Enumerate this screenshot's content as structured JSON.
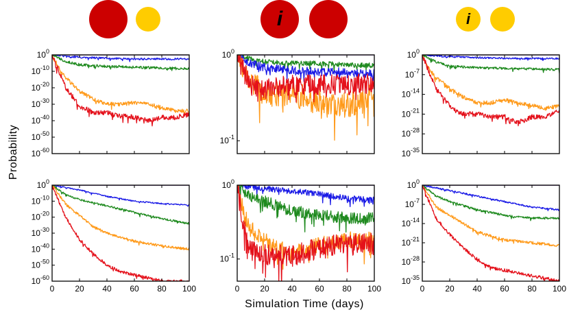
{
  "figure": {
    "ylabel": "Probability",
    "xlabel": "Simulation Time (days)",
    "colors": {
      "red": "#e4111b",
      "orange": "#ff9a1a",
      "green": "#1f8a1f",
      "blue": "#1a1ae6",
      "purple": "#5a1a8a",
      "dark_red": "#cc0000",
      "yellow": "#ffcc00"
    }
  },
  "column_headers": [
    {
      "name": "header-left",
      "circles": [
        {
          "color": "dark_red",
          "label": ""
        },
        {
          "color": "yellow",
          "label": ""
        }
      ]
    },
    {
      "name": "header-middle",
      "circles": [
        {
          "color": "dark_red",
          "label": "i"
        },
        {
          "color": "dark_red",
          "label": ""
        }
      ]
    },
    {
      "name": "header-right",
      "circles": [
        {
          "color": "yellow",
          "label": "i"
        },
        {
          "color": "yellow",
          "label": ""
        }
      ]
    }
  ],
  "chart_data": [
    {
      "id": "top-left",
      "type": "line",
      "yscale": "log",
      "xlim": [
        0,
        100
      ],
      "ylim_exp": [
        -60,
        0
      ],
      "x_ticks": [
        0,
        20,
        40,
        60,
        80,
        100
      ],
      "y_ticks": [
        {
          "base": "10",
          "exp": "0",
          "value_exp": 0
        },
        {
          "base": "10",
          "exp": "-10",
          "value_exp": -10
        },
        {
          "base": "10",
          "exp": "-20",
          "value_exp": -20
        },
        {
          "base": "10",
          "exp": "-30",
          "value_exp": -30
        },
        {
          "base": "10",
          "exp": "-40",
          "value_exp": -40
        },
        {
          "base": "10",
          "exp": "-50",
          "value_exp": -50
        },
        {
          "base": "10",
          "exp": "-60",
          "value_exp": -60
        }
      ],
      "series": [
        {
          "name": "purple",
          "x": [
            0,
            100
          ],
          "y_exp": [
            0,
            0
          ],
          "noise": 0
        },
        {
          "name": "blue",
          "x": [
            0,
            20,
            40,
            60,
            80,
            100
          ],
          "y_exp": [
            0,
            -1.5,
            -2,
            -2.5,
            -2.5,
            -2.5
          ],
          "noise": 0.6
        },
        {
          "name": "green",
          "x": [
            0,
            10,
            20,
            40,
            60,
            80,
            100
          ],
          "y_exp": [
            0,
            -4,
            -6,
            -7,
            -7.5,
            -8,
            -8.5
          ],
          "noise": 0.8
        },
        {
          "name": "orange",
          "x": [
            0,
            5,
            10,
            20,
            30,
            40,
            50,
            60,
            70,
            80,
            90,
            100
          ],
          "y_exp": [
            0,
            -8,
            -14,
            -22,
            -27,
            -30,
            -30,
            -29,
            -30,
            -32,
            -34,
            -34
          ],
          "noise": 1.2
        },
        {
          "name": "red",
          "x": [
            0,
            5,
            10,
            20,
            30,
            40,
            50,
            60,
            70,
            80,
            90,
            100
          ],
          "y_exp": [
            0,
            -10,
            -20,
            -31,
            -35,
            -35,
            -37,
            -38,
            -40,
            -38,
            -38,
            -36
          ],
          "noise": 1.5
        }
      ]
    },
    {
      "id": "top-middle",
      "type": "line",
      "yscale": "log",
      "xlim": [
        0,
        100
      ],
      "ylim_exp": [
        -1.15,
        0
      ],
      "x_ticks": [
        0,
        20,
        40,
        60,
        80,
        100
      ],
      "y_ticks": [
        {
          "base": "10",
          "exp": "0",
          "value_exp": 0
        },
        {
          "base": "10",
          "exp": "-1",
          "value_exp": -1
        }
      ],
      "series": [
        {
          "name": "purple",
          "x": [
            0,
            100
          ],
          "y_exp": [
            0,
            0
          ],
          "noise": 0
        },
        {
          "name": "green",
          "x": [
            0,
            10,
            20,
            40,
            60,
            80,
            100
          ],
          "y_exp": [
            0,
            -0.05,
            -0.08,
            -0.1,
            -0.1,
            -0.12,
            -0.12
          ],
          "noise": 0.03
        },
        {
          "name": "blue",
          "x": [
            0,
            10,
            20,
            40,
            60,
            80,
            100
          ],
          "y_exp": [
            0,
            -0.1,
            -0.15,
            -0.18,
            -0.2,
            -0.2,
            -0.22
          ],
          "noise": 0.05
        },
        {
          "name": "orange",
          "x": [
            0,
            5,
            10,
            20,
            40,
            60,
            80,
            100
          ],
          "y_exp": [
            0,
            -0.15,
            -0.3,
            -0.45,
            -0.45,
            -0.55,
            -0.6,
            -0.45
          ],
          "noise": 0.15
        },
        {
          "name": "red",
          "x": [
            0,
            5,
            10,
            20,
            40,
            60,
            80,
            100
          ],
          "y_exp": [
            0,
            -0.2,
            -0.35,
            -0.4,
            -0.35,
            -0.35,
            -0.35,
            -0.33
          ],
          "noise": 0.12
        }
      ]
    },
    {
      "id": "top-right",
      "type": "line",
      "yscale": "log",
      "xlim": [
        0,
        100
      ],
      "ylim_exp": [
        -35,
        0
      ],
      "x_ticks": [
        0,
        20,
        40,
        60,
        80,
        100
      ],
      "y_ticks": [
        {
          "base": "10",
          "exp": "0",
          "value_exp": 0
        },
        {
          "base": "10",
          "exp": "-7",
          "value_exp": -7
        },
        {
          "base": "10",
          "exp": "-14",
          "value_exp": -14
        },
        {
          "base": "10",
          "exp": "-21",
          "value_exp": -21
        },
        {
          "base": "10",
          "exp": "-28",
          "value_exp": -28
        },
        {
          "base": "10",
          "exp": "-35",
          "value_exp": -35
        }
      ],
      "series": [
        {
          "name": "purple",
          "x": [
            0,
            100
          ],
          "y_exp": [
            0,
            0
          ],
          "noise": 0
        },
        {
          "name": "blue",
          "x": [
            0,
            20,
            40,
            60,
            80,
            100
          ],
          "y_exp": [
            0,
            -0.6,
            -1,
            -1.2,
            -1.3,
            -1.3
          ],
          "noise": 0.3
        },
        {
          "name": "green",
          "x": [
            0,
            10,
            20,
            40,
            60,
            80,
            100
          ],
          "y_exp": [
            0,
            -2.5,
            -4,
            -4.5,
            -4.8,
            -5,
            -5.2
          ],
          "noise": 0.4
        },
        {
          "name": "orange",
          "x": [
            0,
            5,
            10,
            20,
            30,
            40,
            50,
            60,
            70,
            80,
            90,
            100
          ],
          "y_exp": [
            0,
            -5,
            -8,
            -12,
            -15,
            -17,
            -17,
            -16,
            -17,
            -18,
            -19,
            -18
          ],
          "noise": 0.7
        },
        {
          "name": "red",
          "x": [
            0,
            5,
            10,
            20,
            30,
            40,
            50,
            60,
            70,
            80,
            90,
            100
          ],
          "y_exp": [
            0,
            -6,
            -12,
            -18,
            -21,
            -21,
            -22,
            -22,
            -24,
            -22,
            -22,
            -20
          ],
          "noise": 0.9
        }
      ]
    },
    {
      "id": "bottom-left",
      "type": "line",
      "yscale": "log",
      "xlim": [
        0,
        100
      ],
      "ylim_exp": [
        -60,
        0
      ],
      "x_ticks": [
        0,
        20,
        40,
        60,
        80,
        100
      ],
      "y_ticks": [
        {
          "base": "10",
          "exp": "0",
          "value_exp": 0
        },
        {
          "base": "10",
          "exp": "-10",
          "value_exp": -10
        },
        {
          "base": "10",
          "exp": "-20",
          "value_exp": -20
        },
        {
          "base": "10",
          "exp": "-30",
          "value_exp": -30
        },
        {
          "base": "10",
          "exp": "-40",
          "value_exp": -40
        },
        {
          "base": "10",
          "exp": "-50",
          "value_exp": -50
        },
        {
          "base": "10",
          "exp": "-60",
          "value_exp": -60
        }
      ],
      "series": [
        {
          "name": "purple",
          "x": [
            0,
            100
          ],
          "y_exp": [
            0,
            0
          ],
          "noise": 0
        },
        {
          "name": "blue",
          "x": [
            0,
            20,
            40,
            60,
            80,
            100
          ],
          "y_exp": [
            0,
            -3,
            -7,
            -10,
            -11.5,
            -12.5
          ],
          "noise": 0.4
        },
        {
          "name": "green",
          "x": [
            0,
            10,
            20,
            40,
            60,
            80,
            100
          ],
          "y_exp": [
            0,
            -6,
            -9,
            -13,
            -17,
            -21,
            -24
          ],
          "noise": 0.6
        },
        {
          "name": "orange",
          "x": [
            0,
            10,
            20,
            30,
            40,
            60,
            80,
            100
          ],
          "y_exp": [
            0,
            -12,
            -19,
            -26,
            -30,
            -35,
            -38,
            -40
          ],
          "noise": 0.8
        },
        {
          "name": "red",
          "x": [
            0,
            10,
            20,
            30,
            40,
            50,
            60,
            70,
            80,
            90,
            100
          ],
          "y_exp": [
            0,
            -20,
            -34,
            -43,
            -50,
            -54,
            -56,
            -58,
            -60,
            -60,
            -60
          ],
          "noise": 0.9
        }
      ]
    },
    {
      "id": "bottom-middle",
      "type": "line",
      "yscale": "log",
      "xlim": [
        0,
        100
      ],
      "ylim_exp": [
        -1.3,
        0
      ],
      "x_ticks": [
        0,
        20,
        40,
        60,
        80,
        100
      ],
      "y_ticks": [
        {
          "base": "10",
          "exp": "0",
          "value_exp": 0
        },
        {
          "base": "10",
          "exp": "-1",
          "value_exp": -1
        }
      ],
      "series": [
        {
          "name": "purple",
          "x": [
            0,
            100
          ],
          "y_exp": [
            0,
            0
          ],
          "noise": 0
        },
        {
          "name": "blue",
          "x": [
            0,
            20,
            40,
            60,
            80,
            100
          ],
          "y_exp": [
            0,
            -0.05,
            -0.08,
            -0.12,
            -0.18,
            -0.2
          ],
          "noise": 0.04
        },
        {
          "name": "green",
          "x": [
            0,
            10,
            20,
            40,
            60,
            80,
            100
          ],
          "y_exp": [
            0,
            -0.15,
            -0.22,
            -0.35,
            -0.4,
            -0.45,
            -0.45
          ],
          "noise": 0.08
        },
        {
          "name": "orange",
          "x": [
            0,
            5,
            10,
            20,
            40,
            60,
            80,
            100
          ],
          "y_exp": [
            0,
            -0.4,
            -0.6,
            -0.75,
            -0.95,
            -0.8,
            -0.75,
            -0.75
          ],
          "noise": 0.12
        },
        {
          "name": "red",
          "x": [
            0,
            5,
            10,
            20,
            40,
            60,
            80,
            100
          ],
          "y_exp": [
            0,
            -0.6,
            -0.9,
            -0.95,
            -0.95,
            -0.85,
            -0.8,
            -0.8
          ],
          "noise": 0.15
        }
      ]
    },
    {
      "id": "bottom-right",
      "type": "line",
      "yscale": "log",
      "xlim": [
        0,
        100
      ],
      "ylim_exp": [
        -35,
        0
      ],
      "x_ticks": [
        0,
        20,
        40,
        60,
        80,
        100
      ],
      "y_ticks": [
        {
          "base": "10",
          "exp": "0",
          "value_exp": 0
        },
        {
          "base": "10",
          "exp": "-7",
          "value_exp": -7
        },
        {
          "base": "10",
          "exp": "-14",
          "value_exp": -14
        },
        {
          "base": "10",
          "exp": "-21",
          "value_exp": -21
        },
        {
          "base": "10",
          "exp": "-28",
          "value_exp": -28
        },
        {
          "base": "10",
          "exp": "-35",
          "value_exp": -35
        }
      ],
      "series": [
        {
          "name": "purple",
          "x": [
            0,
            100
          ],
          "y_exp": [
            0,
            0
          ],
          "noise": 0
        },
        {
          "name": "blue",
          "x": [
            0,
            20,
            40,
            60,
            80,
            100
          ],
          "y_exp": [
            0,
            -2,
            -4,
            -6,
            -8,
            -9
          ],
          "noise": 0.3
        },
        {
          "name": "green",
          "x": [
            0,
            10,
            20,
            40,
            60,
            80,
            100
          ],
          "y_exp": [
            0,
            -4,
            -6,
            -9,
            -11,
            -12,
            -12
          ],
          "noise": 0.4
        },
        {
          "name": "orange",
          "x": [
            0,
            10,
            20,
            30,
            40,
            60,
            80,
            100
          ],
          "y_exp": [
            0,
            -8,
            -11,
            -14,
            -17,
            -20,
            -21,
            -22
          ],
          "noise": 0.5
        },
        {
          "name": "red",
          "x": [
            0,
            10,
            20,
            30,
            40,
            50,
            60,
            70,
            80,
            90,
            100
          ],
          "y_exp": [
            0,
            -12,
            -18,
            -23,
            -27,
            -30,
            -31,
            -32,
            -33,
            -34,
            -35
          ],
          "noise": 0.6
        }
      ]
    }
  ]
}
